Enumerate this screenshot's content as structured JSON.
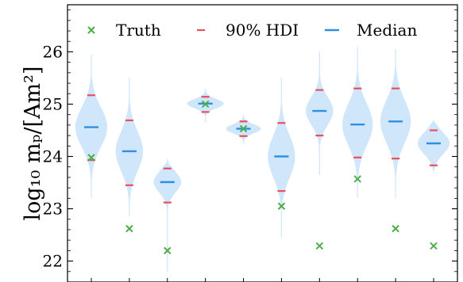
{
  "chart_data": {
    "type": "violin",
    "ylabel": "log₁₀ mₚ/[Am²]",
    "ylim": [
      21.6,
      26.9
    ],
    "yticks": [
      22,
      23,
      24,
      25,
      26
    ],
    "ytick_labels": [
      "22",
      "23",
      "24",
      "25",
      "26"
    ],
    "legend": {
      "placement": "top",
      "entries": [
        {
          "key": "truth",
          "label": "Truth",
          "marker": "x",
          "color": "#4daf4a"
        },
        {
          "key": "hdi",
          "label": "90% HDI",
          "marker": "dash",
          "color": "#e8505b"
        },
        {
          "key": "median",
          "label": "Median",
          "marker": "line",
          "color": "#2f8fe0"
        }
      ]
    },
    "colors": {
      "violin_fill": "#cfe6fb",
      "truth": "#4daf4a",
      "hdi": "#e8505b",
      "median": "#2f8fe0"
    },
    "series": [
      {
        "truth": 23.98,
        "median": 24.56,
        "hdi": [
          23.93,
          25.17
        ],
        "ymin": 23.2,
        "ymax": 25.95,
        "width": 0.42
      },
      {
        "truth": 22.62,
        "median": 24.1,
        "hdi": [
          23.45,
          24.69
        ],
        "ymin": 22.85,
        "ymax": 25.5,
        "width": 0.36
      },
      {
        "truth": 22.2,
        "median": 23.51,
        "hdi": [
          23.12,
          23.77
        ],
        "ymin": 21.8,
        "ymax": 23.95,
        "width": 0.36
      },
      {
        "truth": 25.0,
        "median": 25.01,
        "hdi": [
          24.85,
          25.14
        ],
        "ymin": 24.65,
        "ymax": 25.3,
        "width": 0.48
      },
      {
        "truth": 24.53,
        "median": 24.53,
        "hdi": [
          24.39,
          24.67
        ],
        "ymin": 24.25,
        "ymax": 24.8,
        "width": 0.46
      },
      {
        "truth": 23.05,
        "median": 24.0,
        "hdi": [
          23.34,
          24.64
        ],
        "ymin": 22.45,
        "ymax": 25.5,
        "width": 0.36
      },
      {
        "truth": 22.29,
        "median": 24.87,
        "hdi": [
          24.4,
          25.27
        ],
        "ymin": 23.65,
        "ymax": 26.0,
        "width": 0.36
      },
      {
        "truth": 23.57,
        "median": 24.61,
        "hdi": [
          23.98,
          25.3
        ],
        "ymin": 23.2,
        "ymax": 26.1,
        "width": 0.4
      },
      {
        "truth": 22.62,
        "median": 24.67,
        "hdi": [
          23.96,
          25.3
        ],
        "ymin": 23.2,
        "ymax": 26.05,
        "width": 0.4
      },
      {
        "truth": 22.29,
        "median": 24.25,
        "hdi": [
          23.83,
          24.5
        ],
        "ymin": 23.7,
        "ymax": 24.7,
        "width": 0.42
      }
    ]
  }
}
